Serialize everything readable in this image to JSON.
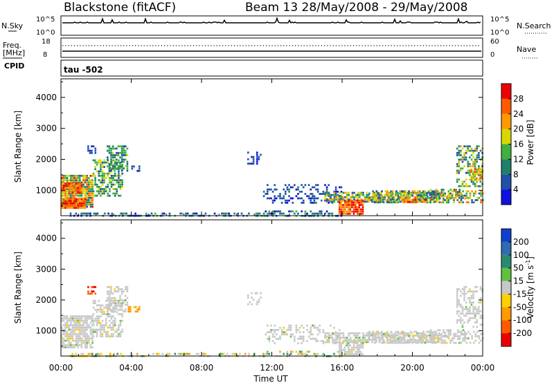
{
  "header": {
    "station": "Blackstone (fitACF)",
    "beam_info": "Beam 13 28/May/2008 - 29/May/2008"
  },
  "top_panels": {
    "nsky_label": "N.Sky",
    "nsky_tick_top": "10^5",
    "nsky_tick_bottom": "10^0",
    "nsearch_label": "N.Search",
    "nsearch_tick_top": "10^5",
    "nsearch_tick_bottom": "10^0",
    "freq_label": "Freq.",
    "freq_unit": "[MHz]",
    "freq_tick_top": "18",
    "freq_tick_bottom": "8",
    "nave_label": "Nave",
    "nave_tick_top": "60",
    "nave_tick_bottom": "0",
    "cpid_label": "CPID",
    "cpid_value": "tau -502"
  },
  "chart_data": [
    {
      "type": "heatmap",
      "title": "Power",
      "ylabel": "Slant Range [km]",
      "xlabel": "Time UT",
      "x_ticks": [
        "00:00",
        "04:00",
        "08:00",
        "12:00",
        "16:00",
        "20:00",
        "00:00"
      ],
      "y_ticks": [
        "1000",
        "2000",
        "3000",
        "4000"
      ],
      "xlim_hours": [
        0,
        24
      ],
      "ylim_km": [
        180,
        4600
      ],
      "colorbar": {
        "label": "Power [dB]",
        "ticks": [
          "4",
          "8",
          "12",
          "16",
          "20",
          "24",
          "28"
        ],
        "range": [
          0,
          30
        ],
        "colors": [
          "#1010e0",
          "#2050a8",
          "#20806a",
          "#40b040",
          "#d8d800",
          "#ff9a00",
          "#ff5a00",
          "#ee0000"
        ]
      },
      "regions": [
        {
          "t0": 0.0,
          "t1": 1.8,
          "r0": 450,
          "r1": 1500,
          "density": 0.9,
          "vmin": 6,
          "vmax": 27
        },
        {
          "t0": 0.0,
          "t1": 1.4,
          "r0": 450,
          "r1": 750,
          "density": 0.95,
          "vmin": 20,
          "vmax": 30
        },
        {
          "t0": 0.0,
          "t1": 1.2,
          "r0": 950,
          "r1": 1250,
          "density": 0.9,
          "vmin": 18,
          "vmax": 28
        },
        {
          "t0": 1.8,
          "t1": 3.5,
          "r0": 800,
          "r1": 2000,
          "density": 0.6,
          "vmin": 6,
          "vmax": 18
        },
        {
          "t0": 2.6,
          "t1": 3.8,
          "r0": 1600,
          "r1": 2450,
          "density": 0.55,
          "vmin": 4,
          "vmax": 16
        },
        {
          "t0": 1.5,
          "t1": 2.0,
          "r0": 2200,
          "r1": 2450,
          "density": 0.5,
          "vmin": 2,
          "vmax": 8
        },
        {
          "t0": 3.8,
          "t1": 4.5,
          "r0": 1650,
          "r1": 1800,
          "density": 0.6,
          "vmin": 2,
          "vmax": 8
        },
        {
          "t0": 0.5,
          "t1": 11.5,
          "r0": 200,
          "r1": 280,
          "density": 0.45,
          "vmin": 2,
          "vmax": 12
        },
        {
          "t0": 10.5,
          "t1": 11.4,
          "r0": 1850,
          "r1": 2250,
          "density": 0.35,
          "vmin": 2,
          "vmax": 6
        },
        {
          "t0": 11.5,
          "t1": 16.0,
          "r0": 600,
          "r1": 1200,
          "density": 0.35,
          "vmin": 2,
          "vmax": 8
        },
        {
          "t0": 11.5,
          "t1": 16.0,
          "r0": 200,
          "r1": 350,
          "density": 0.4,
          "vmin": 2,
          "vmax": 14
        },
        {
          "t0": 15.0,
          "t1": 21.5,
          "r0": 650,
          "r1": 950,
          "density": 0.75,
          "vmin": 4,
          "vmax": 22
        },
        {
          "t0": 15.8,
          "t1": 17.2,
          "r0": 200,
          "r1": 700,
          "density": 0.9,
          "vmin": 20,
          "vmax": 30
        },
        {
          "t0": 17.5,
          "t1": 24.0,
          "r0": 600,
          "r1": 1000,
          "density": 0.55,
          "vmin": 4,
          "vmax": 24
        },
        {
          "t0": 19.5,
          "t1": 20.8,
          "r0": 600,
          "r1": 800,
          "density": 0.6,
          "vmin": 18,
          "vmax": 28
        },
        {
          "t0": 21.0,
          "t1": 23.0,
          "r0": 700,
          "r1": 1050,
          "density": 0.45,
          "vmin": 6,
          "vmax": 24
        },
        {
          "t0": 22.5,
          "t1": 24.0,
          "r0": 1100,
          "r1": 2450,
          "density": 0.5,
          "vmin": 4,
          "vmax": 20
        },
        {
          "t0": 23.3,
          "t1": 24.0,
          "r0": 1300,
          "r1": 1700,
          "density": 0.8,
          "vmin": 14,
          "vmax": 26
        }
      ]
    },
    {
      "type": "heatmap",
      "title": "Velocity",
      "ylabel": "Slant Range [km]",
      "xlabel": "Time UT",
      "x_ticks": [
        "00:00",
        "04:00",
        "08:00",
        "12:00",
        "16:00",
        "20:00",
        "00:00"
      ],
      "y_ticks": [
        "1000",
        "2000",
        "3000",
        "4000"
      ],
      "xlim_hours": [
        0,
        24
      ],
      "ylim_km": [
        180,
        4600
      ],
      "colorbar": {
        "label": "Velocity [m s^-1]",
        "ticks": [
          "200",
          "100",
          "50",
          "15",
          "-15",
          "-50",
          "-100",
          "-200"
        ],
        "colors": [
          "#1040d0",
          "#306ab0",
          "#2a8a70",
          "#60c040",
          "#c8c8c8",
          "#ffcf00",
          "#ff9a00",
          "#ff5a00",
          "#ee0000"
        ]
      },
      "regions": [
        {
          "t0": 0.0,
          "t1": 1.8,
          "r0": 450,
          "r1": 1500,
          "density": 0.85,
          "vclass": "gray"
        },
        {
          "t0": 1.8,
          "t1": 3.5,
          "r0": 800,
          "r1": 2000,
          "density": 0.55,
          "vclass": "gray"
        },
        {
          "t0": 2.6,
          "t1": 3.8,
          "r0": 1600,
          "r1": 2450,
          "density": 0.5,
          "vclass": "gray"
        },
        {
          "t0": 1.5,
          "t1": 2.0,
          "r0": 2200,
          "r1": 2450,
          "density": 0.5,
          "vclass": "red"
        },
        {
          "t0": 3.8,
          "t1": 4.5,
          "r0": 1650,
          "r1": 1800,
          "density": 0.6,
          "vclass": "orange"
        },
        {
          "t0": 0.5,
          "t1": 11.5,
          "r0": 200,
          "r1": 280,
          "density": 0.35,
          "vclass": "mixed"
        },
        {
          "t0": 10.5,
          "t1": 11.4,
          "r0": 1850,
          "r1": 2250,
          "density": 0.3,
          "vclass": "gray"
        },
        {
          "t0": 11.5,
          "t1": 16.0,
          "r0": 600,
          "r1": 1200,
          "density": 0.3,
          "vclass": "gray"
        },
        {
          "t0": 11.5,
          "t1": 16.0,
          "r0": 200,
          "r1": 350,
          "density": 0.35,
          "vclass": "mixed"
        },
        {
          "t0": 15.0,
          "t1": 21.5,
          "r0": 650,
          "r1": 950,
          "density": 0.7,
          "vclass": "gray"
        },
        {
          "t0": 15.8,
          "t1": 17.2,
          "r0": 200,
          "r1": 700,
          "density": 0.8,
          "vclass": "gray"
        },
        {
          "t0": 17.5,
          "t1": 24.0,
          "r0": 600,
          "r1": 1000,
          "density": 0.5,
          "vclass": "gray"
        },
        {
          "t0": 21.0,
          "t1": 23.0,
          "r0": 700,
          "r1": 1050,
          "density": 0.4,
          "vclass": "gray"
        },
        {
          "t0": 22.5,
          "t1": 24.0,
          "r0": 1100,
          "r1": 2450,
          "density": 0.45,
          "vclass": "gray"
        }
      ]
    }
  ]
}
